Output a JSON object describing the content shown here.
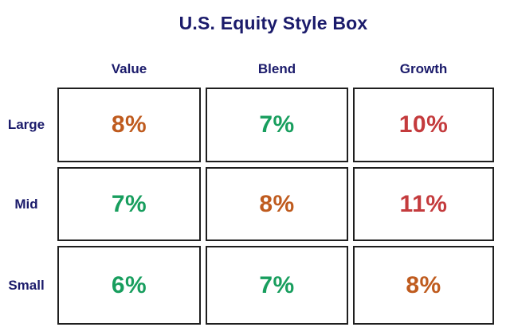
{
  "title": "U.S. Equity Style Box",
  "colors": {
    "navy": "#1b1b6b",
    "orange": "#bf5b1e",
    "green": "#189e5e",
    "red": "#c43b3d",
    "cell_border": "#1f1f1f",
    "background": "#ffffff"
  },
  "chart_data": {
    "type": "table",
    "title": "U.S. Equity Style Box",
    "columns": [
      "Value",
      "Blend",
      "Growth"
    ],
    "rows": [
      "Large",
      "Mid",
      "Small"
    ],
    "values": [
      [
        8,
        7,
        10
      ],
      [
        7,
        8,
        11
      ],
      [
        6,
        7,
        8
      ]
    ],
    "unit": "%",
    "legend_position": "none",
    "grid": "boxed-cells",
    "cells": [
      {
        "row": "Large",
        "col": "Value",
        "value": 8,
        "label": "8%",
        "color": "#bf5b1e"
      },
      {
        "row": "Large",
        "col": "Blend",
        "value": 7,
        "label": "7%",
        "color": "#189e5e"
      },
      {
        "row": "Large",
        "col": "Growth",
        "value": 10,
        "label": "10%",
        "color": "#c43b3d"
      },
      {
        "row": "Mid",
        "col": "Value",
        "value": 7,
        "label": "7%",
        "color": "#189e5e"
      },
      {
        "row": "Mid",
        "col": "Blend",
        "value": 8,
        "label": "8%",
        "color": "#bf5b1e"
      },
      {
        "row": "Mid",
        "col": "Growth",
        "value": 11,
        "label": "11%",
        "color": "#c43b3d"
      },
      {
        "row": "Small",
        "col": "Value",
        "value": 6,
        "label": "6%",
        "color": "#189e5e"
      },
      {
        "row": "Small",
        "col": "Blend",
        "value": 7,
        "label": "7%",
        "color": "#189e5e"
      },
      {
        "row": "Small",
        "col": "Growth",
        "value": 8,
        "label": "8%",
        "color": "#bf5b1e"
      }
    ]
  }
}
